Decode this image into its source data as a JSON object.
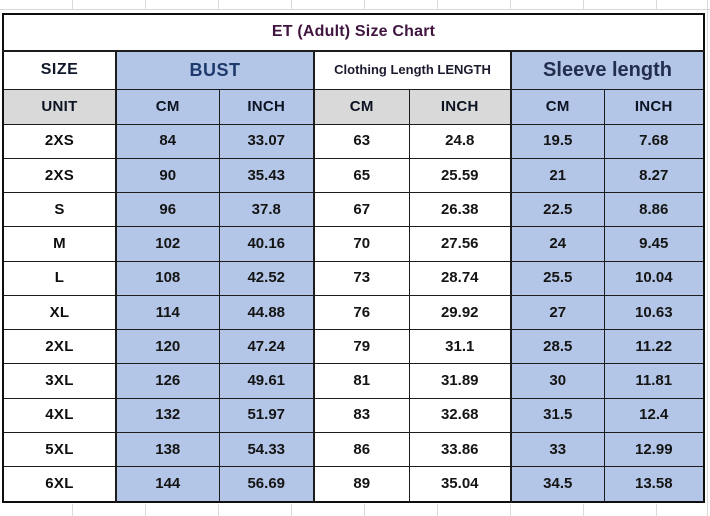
{
  "title": "ET (Adult) Size Chart",
  "header": {
    "size": "SIZE",
    "bust": "BUST",
    "clothing_length": "Clothing Length LENGTH",
    "sleeve_length": "Sleeve length",
    "unit": "UNIT",
    "cm": "CM",
    "inch": "INCH"
  },
  "colors": {
    "cell_blue": "#b4c6e7",
    "cell_gray": "#d9d9d9",
    "title_text": "#3f153f",
    "bust_text": "#1e3a6c",
    "sleeve_text": "#232e4e",
    "grid_line": "#1c1c1c"
  },
  "chart_data": {
    "type": "table",
    "title": "ET (Adult) Size Chart",
    "column_groups": [
      "SIZE",
      "BUST",
      "Clothing Length LENGTH",
      "Sleeve length"
    ],
    "columns": [
      "SIZE",
      "BUST CM",
      "BUST INCH",
      "Clothing Length CM",
      "Clothing Length INCH",
      "Sleeve length CM",
      "Sleeve length INCH"
    ],
    "unit_row": [
      "UNIT",
      "CM",
      "INCH",
      "CM",
      "INCH",
      "CM",
      "INCH"
    ],
    "rows": [
      [
        "2XS",
        "84",
        "33.07",
        "63",
        "24.8",
        "19.5",
        "7.68"
      ],
      [
        "2XS",
        "90",
        "35.43",
        "65",
        "25.59",
        "21",
        "8.27"
      ],
      [
        "S",
        "96",
        "37.8",
        "67",
        "26.38",
        "22.5",
        "8.86"
      ],
      [
        "M",
        "102",
        "40.16",
        "70",
        "27.56",
        "24",
        "9.45"
      ],
      [
        "L",
        "108",
        "42.52",
        "73",
        "28.74",
        "25.5",
        "10.04"
      ],
      [
        "XL",
        "114",
        "44.88",
        "76",
        "29.92",
        "27",
        "10.63"
      ],
      [
        "2XL",
        "120",
        "47.24",
        "79",
        "31.1",
        "28.5",
        "11.22"
      ],
      [
        "3XL",
        "126",
        "49.61",
        "81",
        "31.89",
        "30",
        "11.81"
      ],
      [
        "4XL",
        "132",
        "51.97",
        "83",
        "32.68",
        "31.5",
        "12.4"
      ],
      [
        "5XL",
        "138",
        "54.33",
        "86",
        "33.86",
        "33",
        "12.99"
      ],
      [
        "6XL",
        "144",
        "56.69",
        "89",
        "35.04",
        "34.5",
        "13.58"
      ]
    ]
  }
}
